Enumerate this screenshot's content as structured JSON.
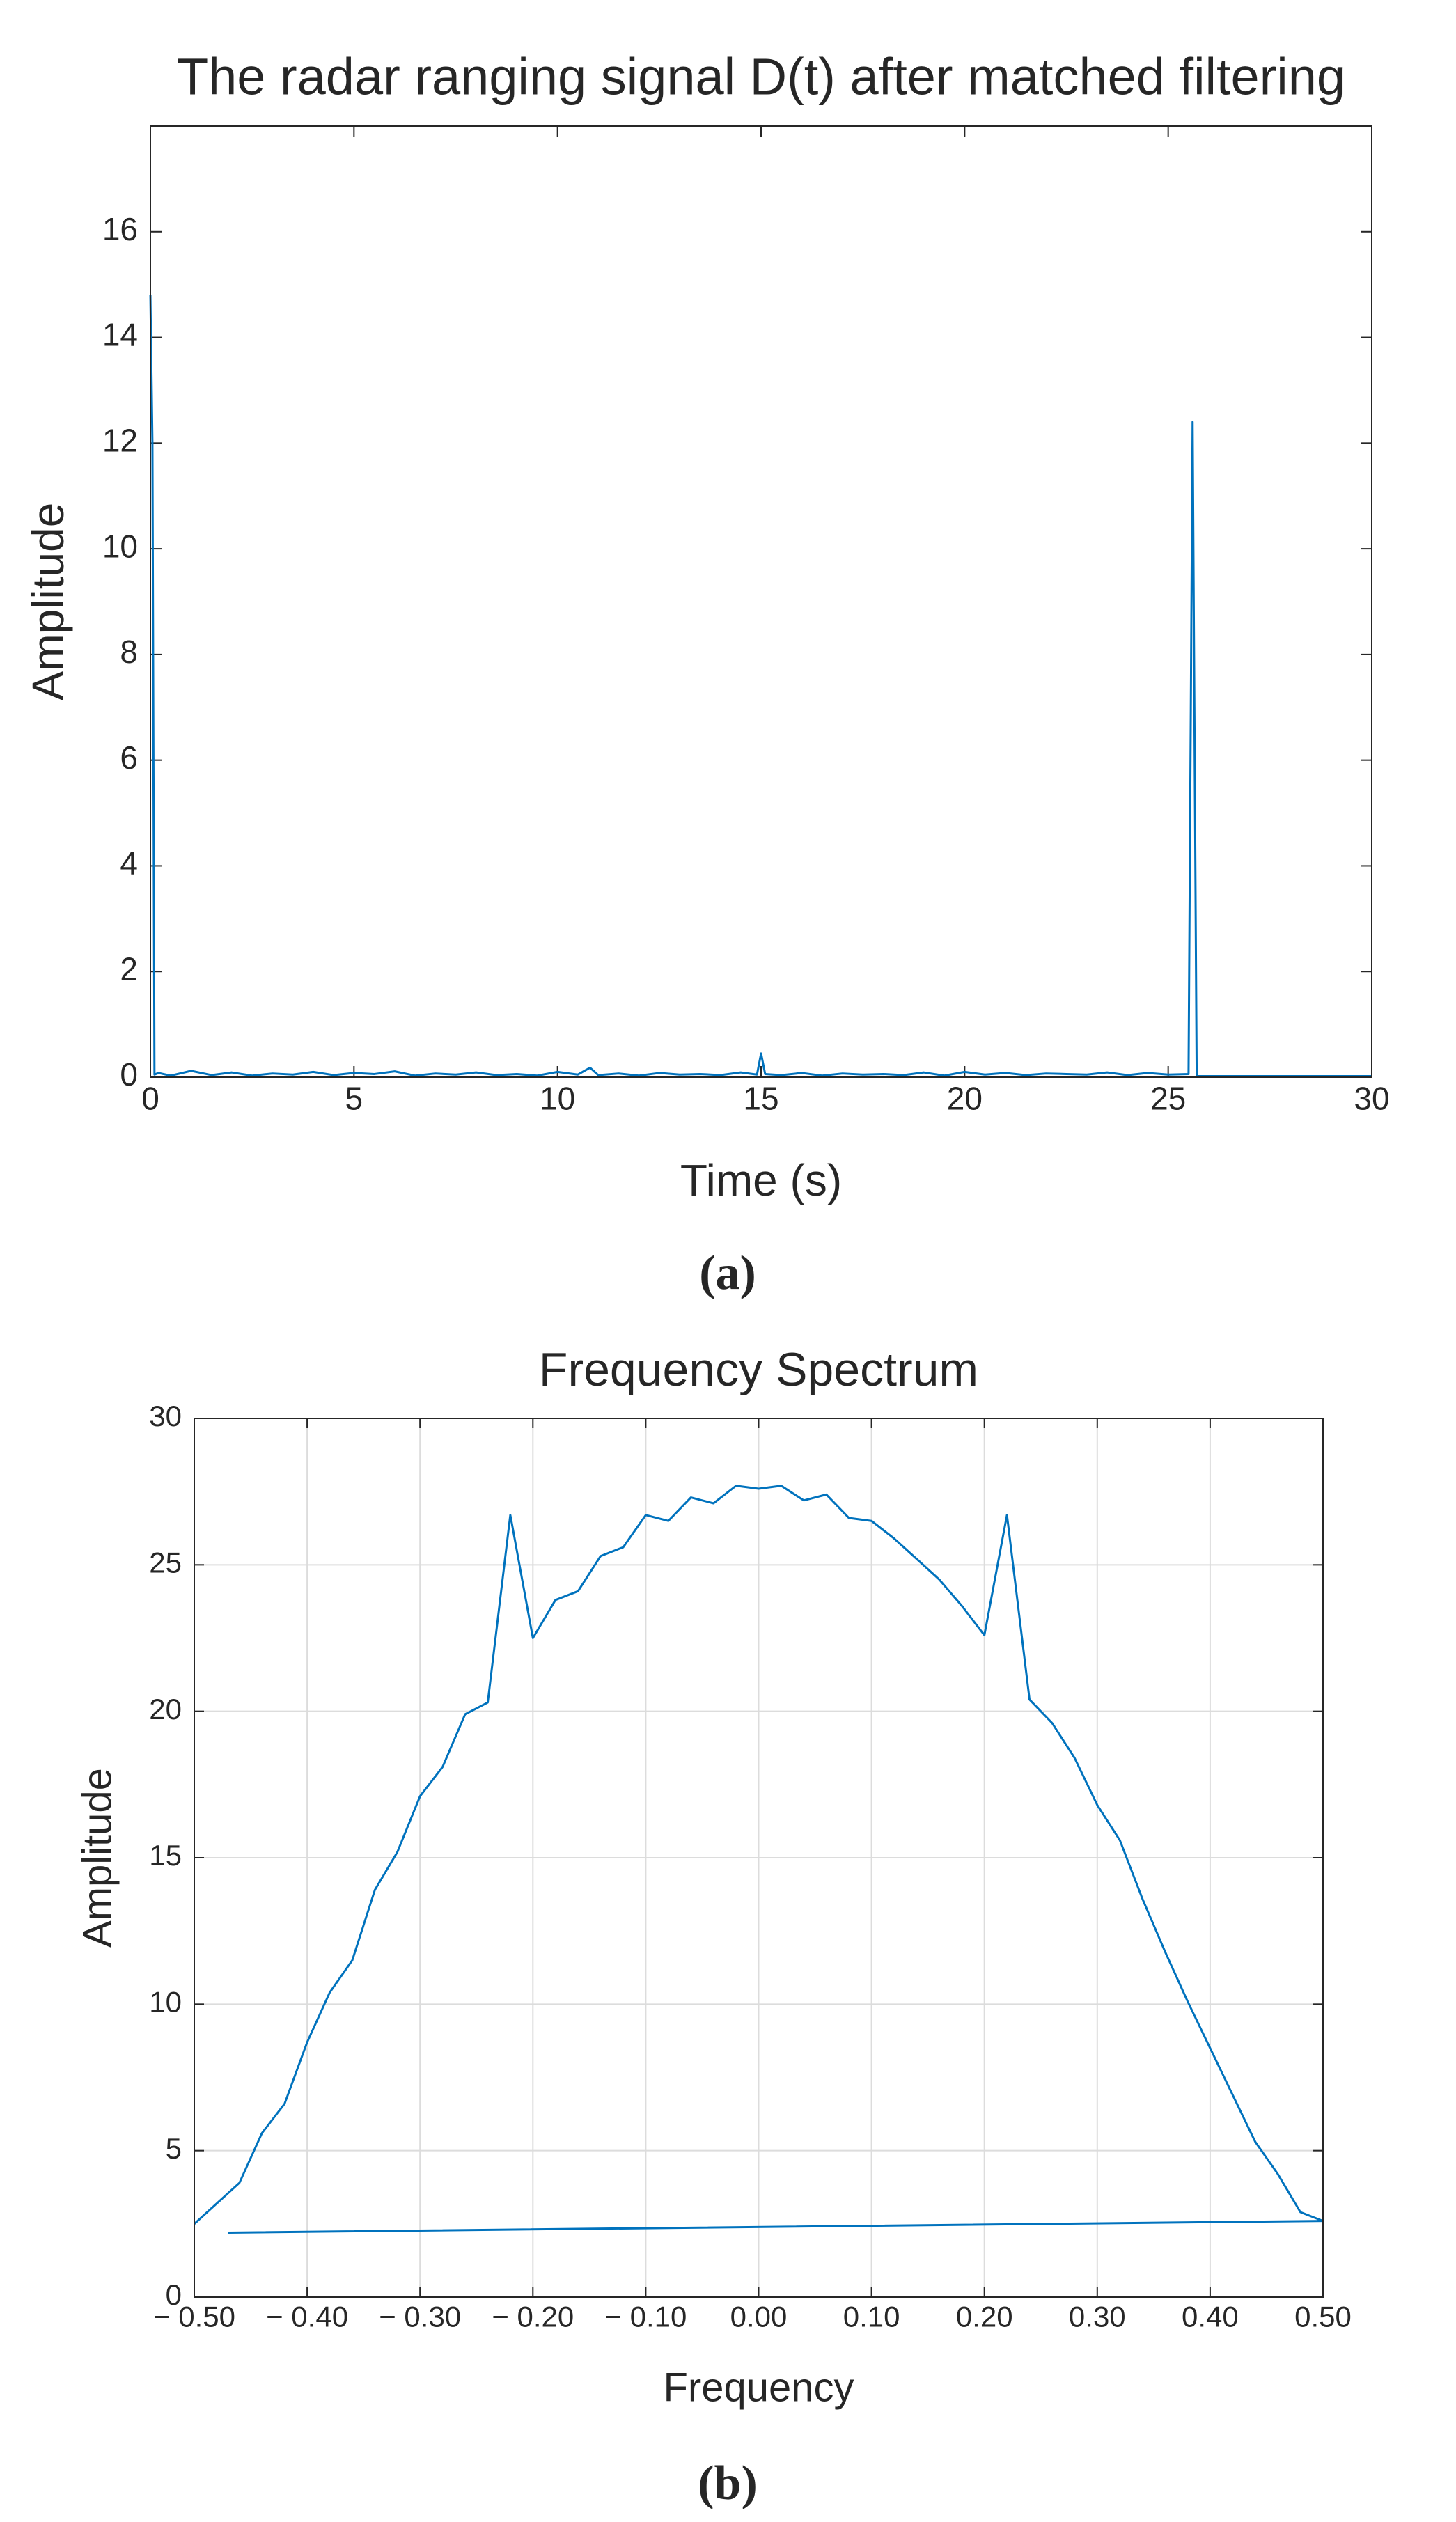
{
  "chart_data": [
    {
      "type": "line",
      "title": "The radar ranging signal D(t) after matched filtering",
      "x_label": "Time (s)",
      "y_label": "Amplitude",
      "caption": "(a)",
      "x": [
        0,
        0.05,
        0.1,
        0.2,
        0.5,
        1,
        1.5,
        2,
        2.5,
        3,
        3.5,
        4,
        4.5,
        5,
        5.5,
        6,
        6.5,
        7,
        7.5,
        8,
        8.5,
        9,
        9.5,
        10,
        10.5,
        10.8,
        11,
        11.5,
        12,
        12.5,
        13,
        13.5,
        14,
        14.5,
        14.9,
        15,
        15.1,
        15.5,
        16,
        16.5,
        17,
        17.5,
        18,
        18.5,
        19,
        19.5,
        20,
        20.5,
        21,
        21.5,
        22,
        22.5,
        23,
        23.5,
        24,
        24.5,
        25,
        25.5,
        25.6,
        25.7,
        30
      ],
      "series": [
        {
          "name": "D(t)",
          "color": "#0072bd",
          "values": [
            14.8,
            12,
            0.05,
            0.08,
            0.03,
            0.12,
            0.04,
            0.09,
            0.03,
            0.07,
            0.05,
            0.1,
            0.04,
            0.08,
            0.06,
            0.11,
            0.03,
            0.07,
            0.05,
            0.09,
            0.04,
            0.06,
            0.03,
            0.1,
            0.05,
            0.18,
            0.04,
            0.07,
            0.03,
            0.08,
            0.05,
            0.06,
            0.04,
            0.09,
            0.05,
            0.45,
            0.06,
            0.04,
            0.08,
            0.03,
            0.07,
            0.05,
            0.06,
            0.04,
            0.09,
            0.03,
            0.1,
            0.05,
            0.08,
            0.04,
            0.07,
            0.06,
            0.05,
            0.09,
            0.04,
            0.08,
            0.05,
            0.06,
            12.4,
            0.02,
            0.02
          ]
        }
      ],
      "xlim": [
        0,
        30
      ],
      "xticks": [
        0,
        5,
        10,
        15,
        20,
        25,
        30
      ],
      "ylim": [
        0,
        18
      ],
      "yticks": [
        0,
        2,
        4,
        6,
        8,
        10,
        12,
        14,
        16
      ],
      "grid": false
    },
    {
      "type": "line",
      "title": "Frequency Spectrum",
      "x_label": "Frequency",
      "y_label": "Amplitude",
      "caption": "(b)",
      "x": [
        -0.5,
        -0.48,
        -0.46,
        -0.44,
        -0.42,
        -0.4,
        -0.38,
        -0.36,
        -0.34,
        -0.32,
        -0.3,
        -0.28,
        -0.26,
        -0.24,
        -0.22,
        -0.2,
        -0.18,
        -0.16,
        -0.14,
        -0.12,
        -0.1,
        -0.08,
        -0.06,
        -0.04,
        -0.02,
        0,
        0.02,
        0.04,
        0.06,
        0.08,
        0.1,
        0.12,
        0.14,
        0.16,
        0.18,
        0.2,
        0.22,
        0.24,
        0.26,
        0.28,
        0.3,
        0.32,
        0.34,
        0.36,
        0.38,
        0.4,
        0.42,
        0.44,
        0.46,
        0.48,
        0.5,
        -0.47
      ],
      "series": [
        {
          "name": "Spectrum",
          "color": "#0072bd",
          "values": [
            2.5,
            3.2,
            3.9,
            5.6,
            6.6,
            8.7,
            10.4,
            11.5,
            13.9,
            15.2,
            17.1,
            18.1,
            19.9,
            20.3,
            26.7,
            22.5,
            23.8,
            24.1,
            25.3,
            25.6,
            26.7,
            26.5,
            27.3,
            27.1,
            27.7,
            27.6,
            27.7,
            27.2,
            27.4,
            26.6,
            26.5,
            25.9,
            25.2,
            24.5,
            23.6,
            22.6,
            26.7,
            20.4,
            19.6,
            18.4,
            16.8,
            15.6,
            13.6,
            11.8,
            10.1,
            8.5,
            6.9,
            5.3,
            4.2,
            2.9,
            2.6,
            2.2
          ]
        }
      ],
      "xlim": [
        -0.5,
        0.5
      ],
      "xticks": [
        {
          "value": -0.5,
          "label": "− 0.50"
        },
        {
          "value": -0.4,
          "label": "− 0.40"
        },
        {
          "value": -0.3,
          "label": "− 0.30"
        },
        {
          "value": -0.2,
          "label": "− 0.20"
        },
        {
          "value": -0.1,
          "label": "− 0.10"
        },
        {
          "value": 0,
          "label": "0.00"
        },
        {
          "value": 0.1,
          "label": "0.10"
        },
        {
          "value": 0.2,
          "label": "0.20"
        },
        {
          "value": 0.3,
          "label": "0.30"
        },
        {
          "value": 0.4,
          "label": "0.40"
        },
        {
          "value": 0.5,
          "label": "0.50"
        }
      ],
      "ylim": [
        0,
        30
      ],
      "yticks": [
        0,
        5,
        10,
        15,
        20,
        25,
        30
      ],
      "grid": true
    }
  ]
}
